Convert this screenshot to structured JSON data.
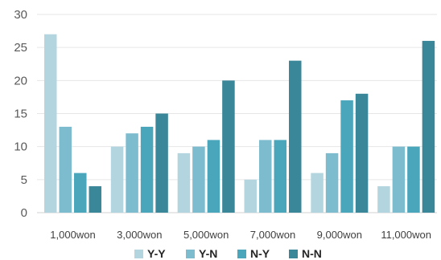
{
  "chart_data": {
    "type": "bar",
    "categories": [
      "1,000won",
      "3,000won",
      "5,000won",
      "7,000won",
      "9,000won",
      "11,000won"
    ],
    "series": [
      {
        "name": "Y-Y",
        "color": "#b3d5e0",
        "values": [
          27,
          10,
          9,
          5,
          6,
          4
        ]
      },
      {
        "name": "Y-N",
        "color": "#7dbccf",
        "values": [
          13,
          12,
          10,
          11,
          9,
          10
        ]
      },
      {
        "name": "N-Y",
        "color": "#4aa6bb",
        "values": [
          6,
          13,
          11,
          11,
          17,
          10
        ]
      },
      {
        "name": "N-N",
        "color": "#3a8799",
        "values": [
          4,
          15,
          20,
          23,
          18,
          26
        ]
      }
    ],
    "ylim": [
      0,
      30
    ],
    "yticks": [
      0,
      5,
      10,
      15,
      20,
      25,
      30
    ],
    "grid": true,
    "legend_position": "bottom"
  }
}
